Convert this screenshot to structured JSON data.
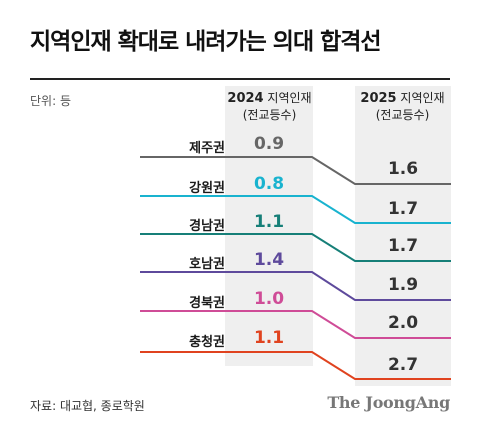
{
  "title": "지역인재 확대로 내려가는 의대 합격선",
  "unit": "단위: 등",
  "chart_data": {
    "type": "slope",
    "columns": [
      {
        "year": "2024",
        "label": "지역인재",
        "sub": "(전교등수)"
      },
      {
        "year": "2025",
        "label": "지역인재",
        "sub": "(전교등수)"
      }
    ],
    "categories": [
      "제주권",
      "강원권",
      "경남권",
      "호남권",
      "경북권",
      "충청권"
    ],
    "series": [
      {
        "name": "2024 지역인재",
        "values": [
          0.9,
          0.8,
          1.1,
          1.4,
          1.0,
          1.1
        ]
      },
      {
        "name": "2025 지역인재",
        "values": [
          1.6,
          1.7,
          1.7,
          1.9,
          2.0,
          2.7
        ]
      }
    ],
    "labels_2024": [
      "0.9",
      "0.8",
      "1.1",
      "1.4",
      "1.0",
      "1.1"
    ],
    "labels_2025": [
      "1.6",
      "1.7",
      "1.7",
      "1.9",
      "2.0",
      "2.7"
    ],
    "colors": [
      "#666666",
      "#19b3cf",
      "#167f78",
      "#5e4a9c",
      "#cf4c97",
      "#e0431f"
    ]
  },
  "footer": {
    "source": "자료: 대교협, 종로학원",
    "brand": "The JoongAng"
  }
}
